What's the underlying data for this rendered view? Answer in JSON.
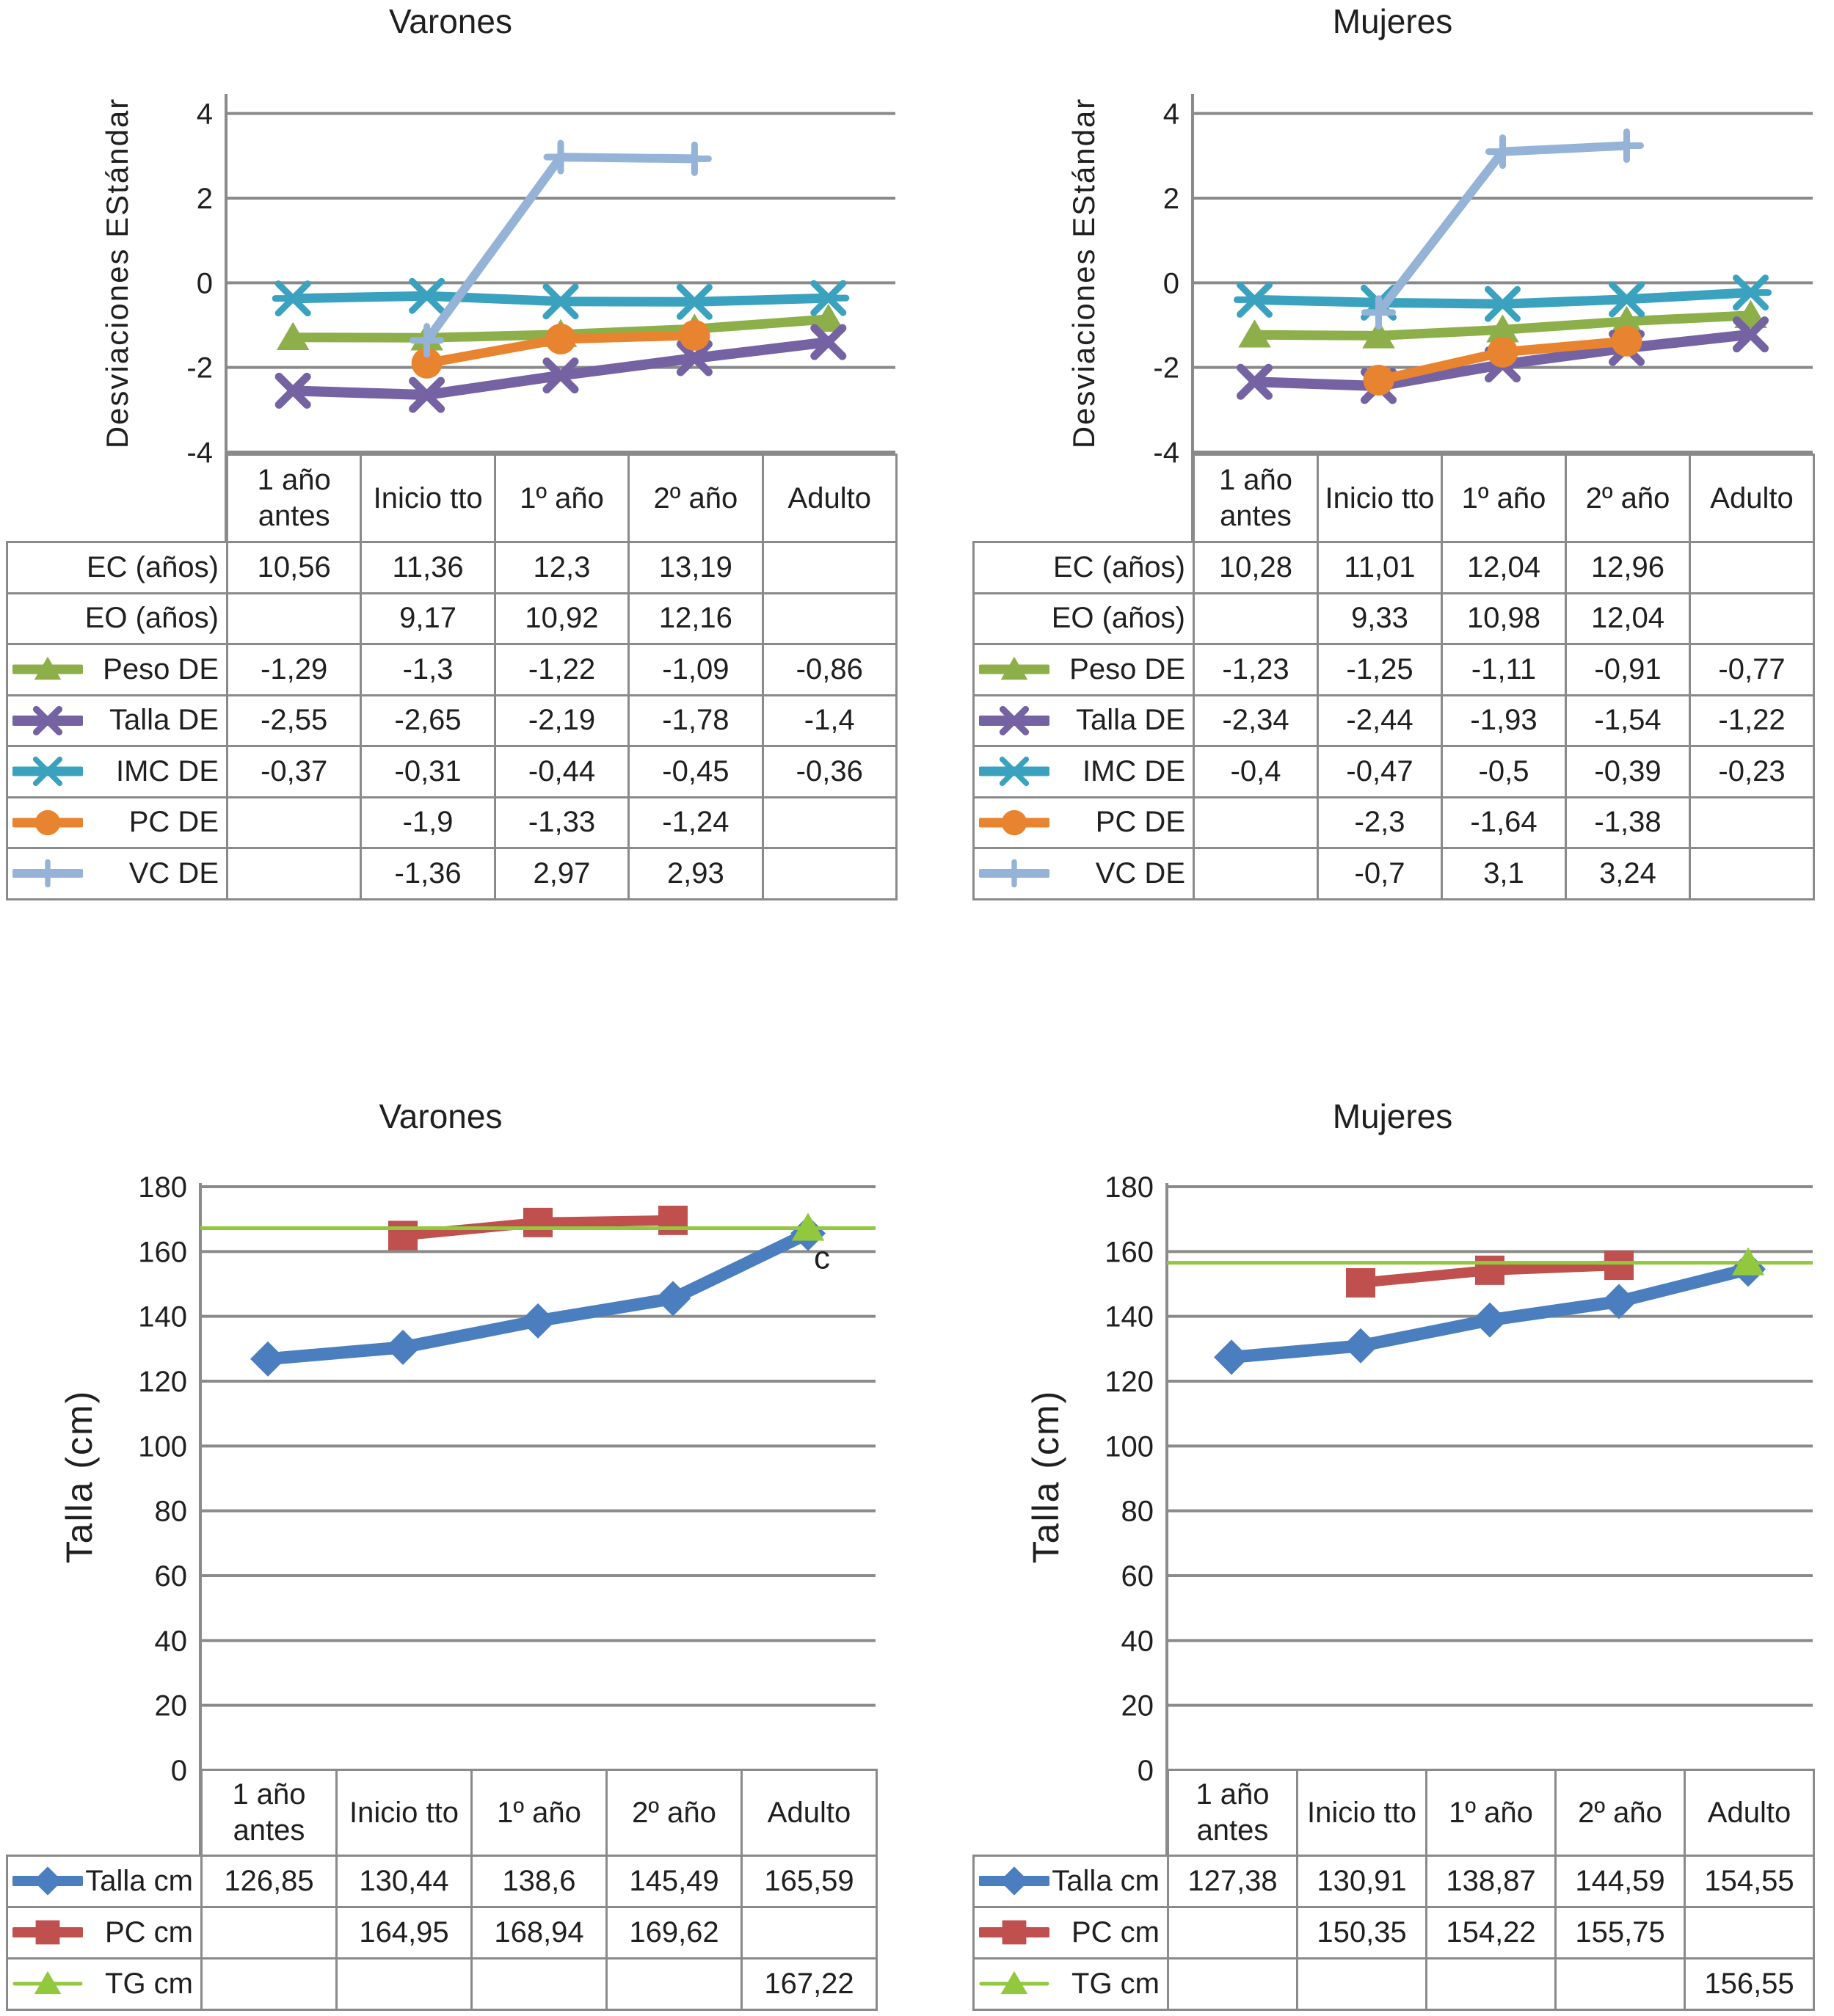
{
  "palette": {
    "grid": "#8A8A8A",
    "text": "#1F1F1F",
    "background": "#FFFFFF",
    "peso_de_green": "#8DAF4A",
    "talla_de_purple": "#7562A2",
    "imc_de_teal": "#3AA2BE",
    "pc_de_orange": "#E8842F",
    "vc_de_lightblue": "#95B3D7",
    "talla_cm_blue": "#4A7EBE",
    "pc_cm_red": "#C0504D",
    "tg_cm_green": "#92C83E"
  },
  "chart_data": [
    {
      "type": "line",
      "title": "Varones",
      "ylabel": "Desviaciones EStándar",
      "xlabel": "",
      "ylim": [
        -4,
        4
      ],
      "yticks": [
        4,
        2,
        0,
        -2,
        -4
      ],
      "grid": true,
      "legend_position": "table-left",
      "categories": [
        "1 año antes",
        "Inicio tto",
        "1º año",
        "2º año",
        "Adulto"
      ],
      "extra_rows": [
        {
          "label": "EC (años)",
          "values": [
            10.56,
            11.36,
            12.3,
            13.19,
            null
          ]
        },
        {
          "label": "EO (años)",
          "values": [
            null,
            9.17,
            10.92,
            12.16,
            null
          ]
        }
      ],
      "series": [
        {
          "name": "Peso DE",
          "marker": "triangle",
          "color": "#8DAF4A",
          "values": [
            -1.29,
            -1.3,
            -1.22,
            -1.09,
            -0.86
          ]
        },
        {
          "name": "Talla DE",
          "marker": "x",
          "color": "#7562A2",
          "values": [
            -2.55,
            -2.65,
            -2.19,
            -1.78,
            -1.4
          ]
        },
        {
          "name": "IMC DE",
          "marker": "asterisk",
          "color": "#3AA2BE",
          "values": [
            -0.37,
            -0.31,
            -0.44,
            -0.45,
            -0.36
          ]
        },
        {
          "name": "PC DE",
          "marker": "circle",
          "color": "#E8842F",
          "values": [
            null,
            -1.9,
            -1.33,
            -1.24,
            null
          ]
        },
        {
          "name": "VC DE",
          "marker": "plus",
          "color": "#95B3D7",
          "values": [
            null,
            -1.36,
            2.97,
            2.93,
            null
          ]
        }
      ]
    },
    {
      "type": "line",
      "title": "Mujeres",
      "ylabel": "Desviaciones EStándar",
      "xlabel": "",
      "ylim": [
        -4,
        4
      ],
      "yticks": [
        4,
        2,
        0,
        -2,
        -4
      ],
      "grid": true,
      "legend_position": "table-left",
      "categories": [
        "1 año antes",
        "Inicio tto",
        "1º año",
        "2º año",
        "Adulto"
      ],
      "extra_rows": [
        {
          "label": "EC (años)",
          "values": [
            10.28,
            11.01,
            12.04,
            12.96,
            null
          ]
        },
        {
          "label": "EO (años)",
          "values": [
            null,
            9.33,
            10.98,
            12.04,
            null
          ]
        }
      ],
      "series": [
        {
          "name": "Peso DE",
          "marker": "triangle",
          "color": "#8DAF4A",
          "values": [
            -1.23,
            -1.25,
            -1.11,
            -0.91,
            -0.77
          ]
        },
        {
          "name": "Talla DE",
          "marker": "x",
          "color": "#7562A2",
          "values": [
            -2.34,
            -2.44,
            -1.93,
            -1.54,
            -1.22
          ]
        },
        {
          "name": "IMC DE",
          "marker": "asterisk",
          "color": "#3AA2BE",
          "values": [
            -0.4,
            -0.47,
            -0.5,
            -0.39,
            -0.23
          ]
        },
        {
          "name": "PC DE",
          "marker": "circle",
          "color": "#E8842F",
          "values": [
            null,
            -2.3,
            -1.64,
            -1.38,
            null
          ]
        },
        {
          "name": "VC DE",
          "marker": "plus",
          "color": "#95B3D7",
          "values": [
            null,
            -0.7,
            3.1,
            3.24,
            null
          ]
        }
      ]
    },
    {
      "type": "line",
      "title": "Varones",
      "ylabel": "Talla (cm)",
      "xlabel": "",
      "ylim": [
        0,
        180
      ],
      "yticks": [
        180,
        160,
        140,
        120,
        100,
        80,
        60,
        40,
        20,
        0
      ],
      "grid": true,
      "legend_position": "table-left",
      "categories": [
        "1 año antes",
        "Inicio tto",
        "1º año",
        "2º año",
        "Adulto"
      ],
      "extra_rows": [],
      "series": [
        {
          "name": "Talla cm",
          "marker": "diamond",
          "color": "#4A7EBE",
          "values": [
            126.85,
            130.44,
            138.6,
            145.49,
            165.59
          ]
        },
        {
          "name": "PC cm",
          "marker": "square",
          "color": "#C0504D",
          "values": [
            null,
            164.95,
            168.94,
            169.62,
            null
          ]
        },
        {
          "name": "TG cm",
          "marker": "triangle",
          "color": "#92C83E",
          "values": [
            null,
            null,
            null,
            null,
            167.22
          ],
          "ref_value": 167.22
        }
      ],
      "annotation": {
        "text": "c",
        "series": "Talla cm",
        "category_index": 4
      }
    },
    {
      "type": "line",
      "title": "Mujeres",
      "ylabel": "Talla (cm)",
      "xlabel": "",
      "ylim": [
        0,
        180
      ],
      "yticks": [
        180,
        160,
        140,
        120,
        100,
        80,
        60,
        40,
        20,
        0
      ],
      "grid": true,
      "legend_position": "table-left",
      "categories": [
        "1 año antes",
        "Inicio tto",
        "1º año",
        "2º año",
        "Adulto"
      ],
      "extra_rows": [],
      "series": [
        {
          "name": "Talla cm",
          "marker": "diamond",
          "color": "#4A7EBE",
          "values": [
            127.38,
            130.91,
            138.87,
            144.59,
            154.55
          ]
        },
        {
          "name": "PC cm",
          "marker": "square",
          "color": "#C0504D",
          "values": [
            null,
            150.35,
            154.22,
            155.75,
            null
          ]
        },
        {
          "name": "TG cm",
          "marker": "triangle",
          "color": "#92C83E",
          "values": [
            null,
            null,
            null,
            null,
            156.55
          ],
          "ref_value": 156.55
        }
      ]
    }
  ]
}
